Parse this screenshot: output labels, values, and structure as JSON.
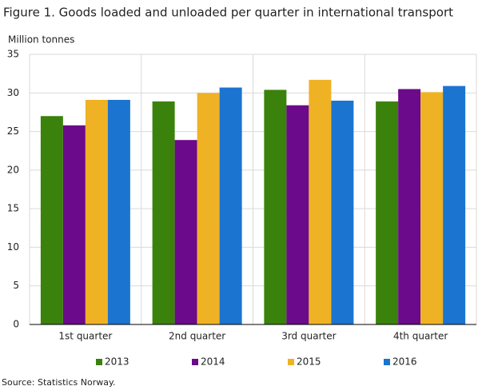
{
  "chart_data": {
    "type": "bar",
    "title": "Figure 1. Goods loaded and unloaded per quarter in international transport",
    "y_label": "Million tonnes",
    "source": "Source: Statistics Norway.",
    "categories": [
      "1st quarter",
      "2nd quarter",
      "3rd quarter",
      "4th quarter"
    ],
    "series": [
      {
        "name": "2013",
        "color": "#3a820b",
        "values": [
          27.0,
          28.9,
          30.4,
          28.9
        ]
      },
      {
        "name": "2014",
        "color": "#6b0a8a",
        "values": [
          25.8,
          23.9,
          28.4,
          30.5
        ]
      },
      {
        "name": "2015",
        "color": "#efb224",
        "values": [
          29.1,
          30.0,
          31.7,
          30.1
        ]
      },
      {
        "name": "2016",
        "color": "#1b74d0",
        "values": [
          29.1,
          30.7,
          29.0,
          30.9
        ]
      }
    ],
    "ylim": [
      0,
      35
    ],
    "yticks": [
      0,
      5,
      10,
      15,
      20,
      25,
      30,
      35
    ],
    "grid": true
  }
}
